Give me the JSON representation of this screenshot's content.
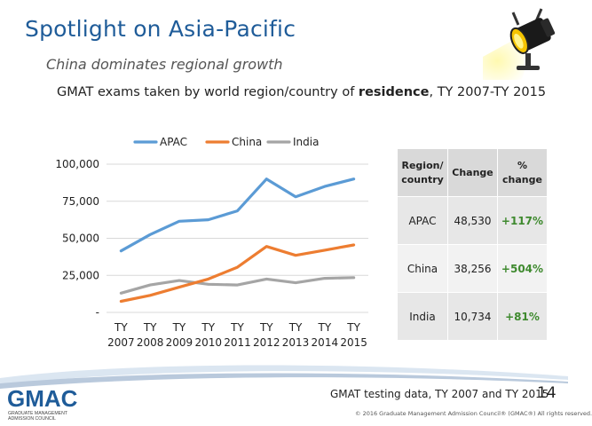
{
  "slide": {
    "title": "Spotlight on Asia-Pacific",
    "subtitle": "China dominates regional growth",
    "heading_pre": "GMAT exams taken by world region/country of ",
    "heading_bold": "residence",
    "heading_post": ", TY 2007-TY 2015",
    "source": "GMAT testing data, TY 2007 and TY 2015",
    "page_number": "14",
    "copyright": "© 2016 Graduate Management Admission Council® (GMAC®) All rights reserved.",
    "logo_text": "GMAC",
    "logo_subtext_1": "GRADUATE MANAGEMENT",
    "logo_subtext_2": "ADMISSION COUNCIL"
  },
  "table": {
    "headers": [
      "Region/ country",
      "Change",
      "% change"
    ],
    "rows": [
      {
        "region": "APAC",
        "change": "48,530",
        "pct": "+117%"
      },
      {
        "region": "China",
        "change": "38,256",
        "pct": "+504%"
      },
      {
        "region": "India",
        "change": "10,734",
        "pct": "+81%"
      }
    ]
  },
  "colors": {
    "APAC": "#5b9bd5",
    "China": "#ed7d31",
    "India": "#a5a5a5",
    "title": "#1f5c99",
    "pct_text": "#3f8a2f"
  },
  "chart_data": {
    "type": "line",
    "title": "",
    "xlabel": "",
    "ylabel": "",
    "legend_position": "top",
    "grid": true,
    "ylim": [
      0,
      100000
    ],
    "yticks": [
      0,
      25000,
      50000,
      75000,
      100000
    ],
    "ytick_labels": [
      "-",
      "25,000",
      "50,000",
      "75,000",
      "100,000"
    ],
    "categories": [
      [
        "TY",
        "2007"
      ],
      [
        "TY",
        "2008"
      ],
      [
        "TY",
        "2009"
      ],
      [
        "TY",
        "2010"
      ],
      [
        "TY",
        "2011"
      ],
      [
        "TY",
        "2012"
      ],
      [
        "TY",
        "2013"
      ],
      [
        "TY",
        "2014"
      ],
      [
        "TY",
        "2015"
      ]
    ],
    "series": [
      {
        "name": "APAC",
        "values": [
          41500,
          52500,
          61500,
          62500,
          68500,
          90000,
          78000,
          85000,
          90000
        ]
      },
      {
        "name": "China",
        "values": [
          7500,
          11500,
          17000,
          22500,
          30500,
          44500,
          38500,
          42000,
          45500
        ]
      },
      {
        "name": "India",
        "values": [
          13000,
          18500,
          21500,
          19000,
          18500,
          22500,
          20000,
          23000,
          23500
        ]
      }
    ]
  }
}
